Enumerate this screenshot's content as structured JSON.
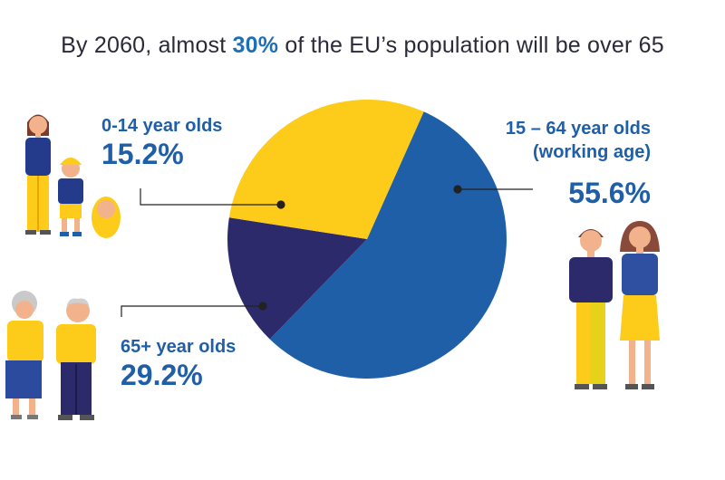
{
  "title": {
    "before": "By 2060, almost ",
    "highlight": "30%",
    "after": " of the EU’s population will be over 65"
  },
  "colors": {
    "working": "#1f5fa8",
    "young": "#2c2a6b",
    "old": "#fdcb1a",
    "label": "#1f5fa8",
    "title_text": "#2a2a3a",
    "title_highlight": "#1d6fb7"
  },
  "labels": {
    "young": {
      "name": "0-14 year olds",
      "pct": "15.2%"
    },
    "working": {
      "name_line1": "15 – 64 year olds",
      "name_line2": "(working age)",
      "pct": "55.6%"
    },
    "old": {
      "name": "65+ year olds",
      "pct": "29.2%"
    }
  },
  "chart_data": {
    "type": "pie",
    "title": "By 2060, almost 30% of the EU’s population will be over 65",
    "categories": [
      "15 – 64 year olds (working age)",
      "0-14 year olds",
      "65+ year olds"
    ],
    "values": [
      55.6,
      15.2,
      29.2
    ],
    "unit": "%",
    "colors": [
      "#1f5fa8",
      "#2c2a6b",
      "#fdcb1a"
    ],
    "start_angle_deg": 24,
    "direction": "clockwise"
  },
  "icons": [
    "mother-with-children-icon",
    "elderly-couple-icon",
    "working-age-couple-icon"
  ]
}
